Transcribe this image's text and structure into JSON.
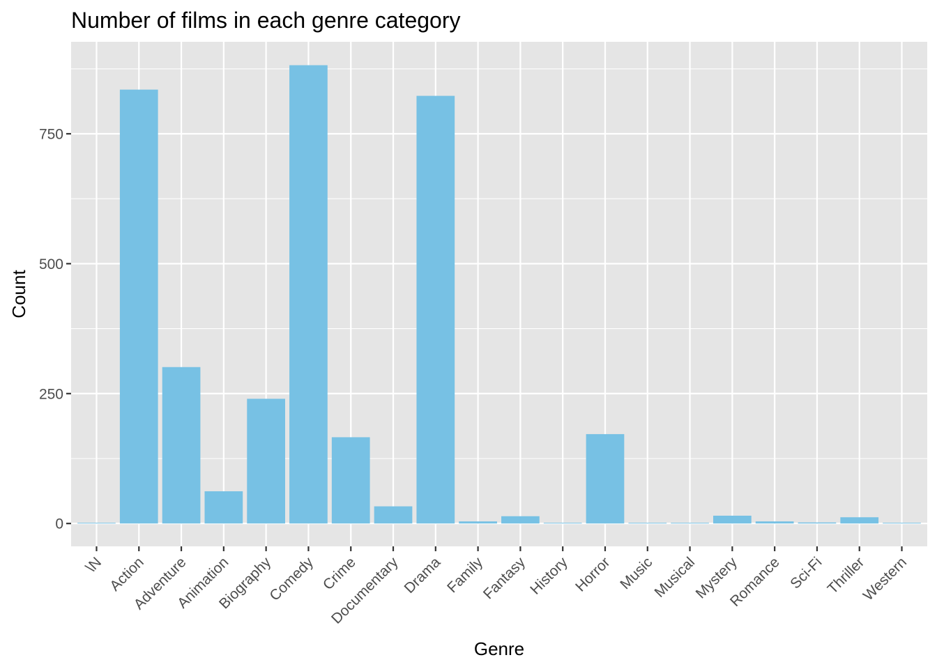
{
  "chart_data": {
    "type": "bar",
    "title": "Number of films in each genre category",
    "xlabel": "Genre",
    "ylabel": "Count",
    "categories": [
      "\\N",
      "Action",
      "Adventure",
      "Animation",
      "Biography",
      "Comedy",
      "Crime",
      "Documentary",
      "Drama",
      "Family",
      "Fantasy",
      "History",
      "Horror",
      "Music",
      "Musical",
      "Mystery",
      "Romance",
      "Sci-Fi",
      "Thriller",
      "Western"
    ],
    "values": [
      1,
      835,
      301,
      62,
      240,
      882,
      166,
      33,
      823,
      4,
      14,
      1,
      172,
      1,
      1,
      15,
      4,
      2,
      12,
      1
    ],
    "yticks": [
      0,
      250,
      500,
      750
    ],
    "ylim": [
      -44,
      927
    ],
    "grid": true,
    "bar_color": "#77C1E4",
    "panel_background": "#E5E5E5",
    "gridline_color": "#FFFFFF"
  }
}
